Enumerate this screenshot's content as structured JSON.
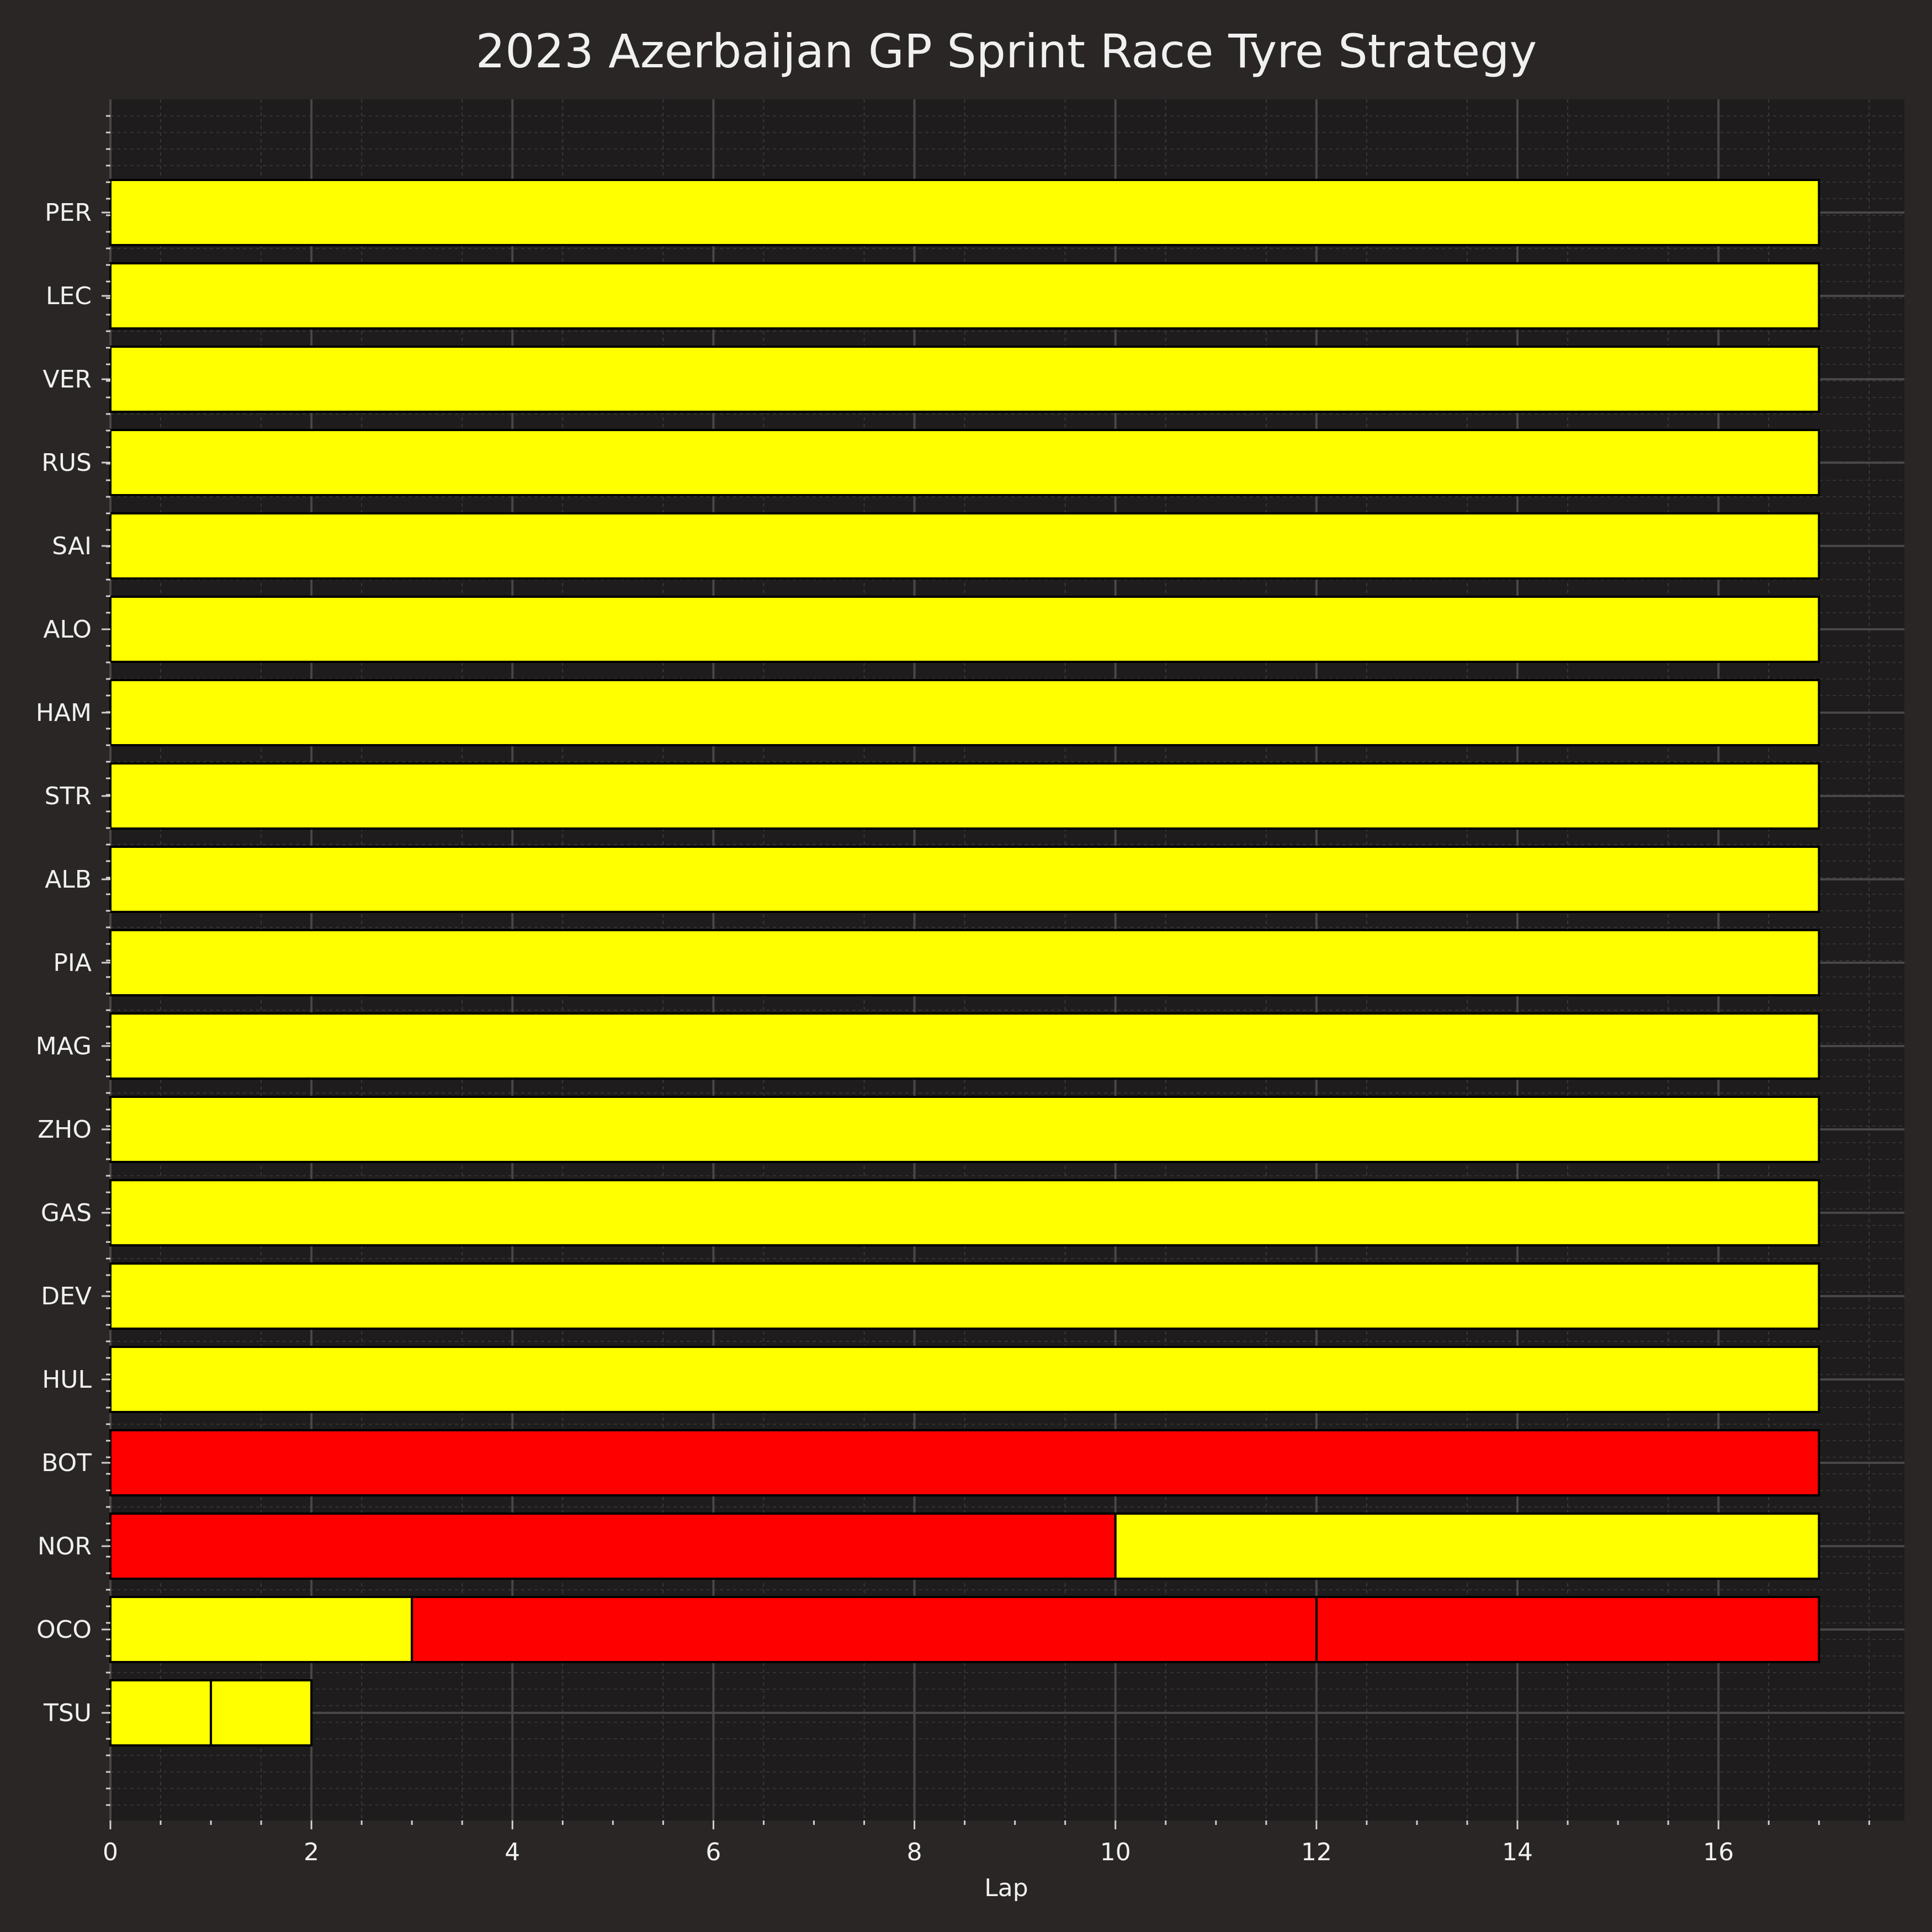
{
  "chart_data": {
    "type": "bar",
    "orientation": "horizontal",
    "stacked": true,
    "title": "2023 Azerbaijan GP Sprint Race Tyre Strategy",
    "xlabel": "Lap",
    "ylabel": "",
    "xlim": [
      0,
      17.85
    ],
    "xticks": [
      0,
      2,
      4,
      6,
      8,
      10,
      12,
      14,
      16
    ],
    "grid": true,
    "legend": "none",
    "compound_colors": {
      "SOFT": "#ff0000",
      "MEDIUM": "#ffff00"
    },
    "colors": {
      "background": "#292625",
      "plot_background": "#1e1c1c",
      "bar_edge": "#000000",
      "text": "#f0f0f0"
    },
    "drivers": [
      {
        "driver": "PER",
        "stints": [
          {
            "compound": "MEDIUM",
            "start": 0,
            "end": 17
          }
        ]
      },
      {
        "driver": "LEC",
        "stints": [
          {
            "compound": "MEDIUM",
            "start": 0,
            "end": 17
          }
        ]
      },
      {
        "driver": "VER",
        "stints": [
          {
            "compound": "MEDIUM",
            "start": 0,
            "end": 17
          }
        ]
      },
      {
        "driver": "RUS",
        "stints": [
          {
            "compound": "MEDIUM",
            "start": 0,
            "end": 17
          }
        ]
      },
      {
        "driver": "SAI",
        "stints": [
          {
            "compound": "MEDIUM",
            "start": 0,
            "end": 17
          }
        ]
      },
      {
        "driver": "ALO",
        "stints": [
          {
            "compound": "MEDIUM",
            "start": 0,
            "end": 17
          }
        ]
      },
      {
        "driver": "HAM",
        "stints": [
          {
            "compound": "MEDIUM",
            "start": 0,
            "end": 17
          }
        ]
      },
      {
        "driver": "STR",
        "stints": [
          {
            "compound": "MEDIUM",
            "start": 0,
            "end": 17
          }
        ]
      },
      {
        "driver": "ALB",
        "stints": [
          {
            "compound": "MEDIUM",
            "start": 0,
            "end": 17
          }
        ]
      },
      {
        "driver": "PIA",
        "stints": [
          {
            "compound": "MEDIUM",
            "start": 0,
            "end": 17
          }
        ]
      },
      {
        "driver": "MAG",
        "stints": [
          {
            "compound": "MEDIUM",
            "start": 0,
            "end": 17
          }
        ]
      },
      {
        "driver": "ZHO",
        "stints": [
          {
            "compound": "MEDIUM",
            "start": 0,
            "end": 17
          }
        ]
      },
      {
        "driver": "GAS",
        "stints": [
          {
            "compound": "MEDIUM",
            "start": 0,
            "end": 17
          }
        ]
      },
      {
        "driver": "DEV",
        "stints": [
          {
            "compound": "MEDIUM",
            "start": 0,
            "end": 17
          }
        ]
      },
      {
        "driver": "HUL",
        "stints": [
          {
            "compound": "MEDIUM",
            "start": 0,
            "end": 17
          }
        ]
      },
      {
        "driver": "BOT",
        "stints": [
          {
            "compound": "SOFT",
            "start": 0,
            "end": 17
          }
        ]
      },
      {
        "driver": "NOR",
        "stints": [
          {
            "compound": "SOFT",
            "start": 0,
            "end": 10
          },
          {
            "compound": "MEDIUM",
            "start": 10,
            "end": 17
          }
        ]
      },
      {
        "driver": "OCO",
        "stints": [
          {
            "compound": "MEDIUM",
            "start": 0,
            "end": 3
          },
          {
            "compound": "SOFT",
            "start": 3,
            "end": 12
          },
          {
            "compound": "SOFT",
            "start": 12,
            "end": 17
          }
        ]
      },
      {
        "driver": "TSU",
        "stints": [
          {
            "compound": "MEDIUM",
            "start": 0,
            "end": 1
          },
          {
            "compound": "MEDIUM",
            "start": 1,
            "end": 2
          }
        ]
      }
    ]
  }
}
